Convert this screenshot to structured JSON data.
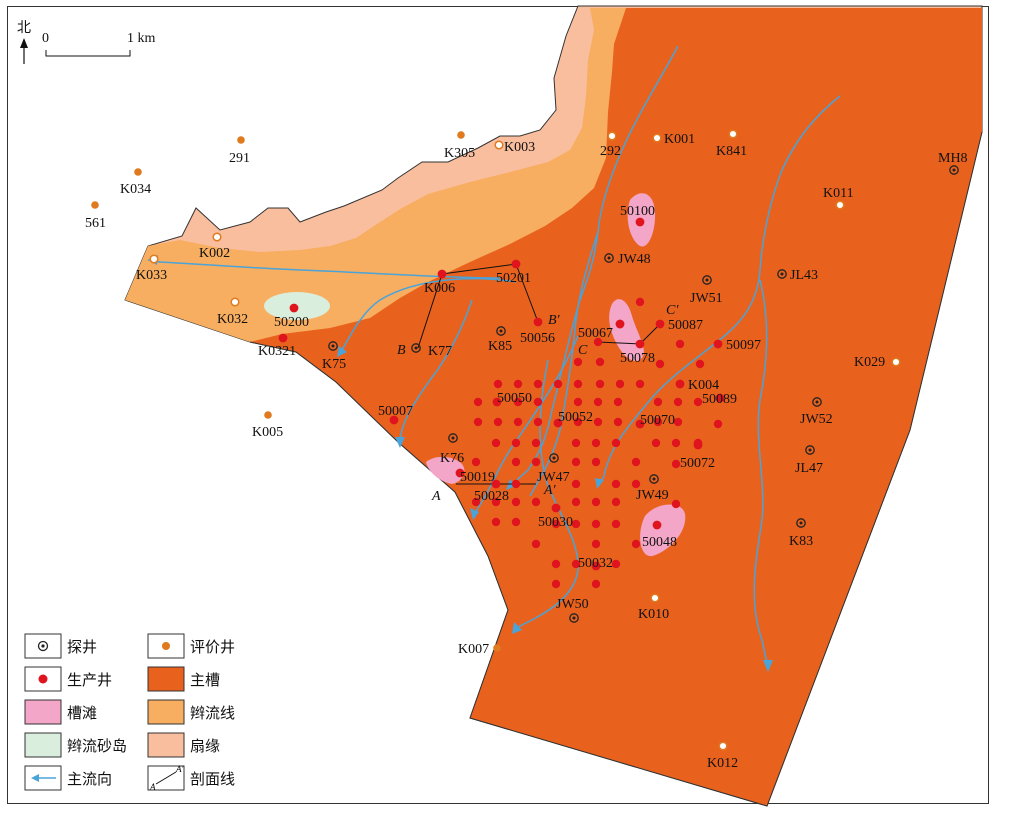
{
  "north_label": "北",
  "scale": {
    "zero": "0",
    "end": "1 km"
  },
  "colors": {
    "main_channel": "#E8621E",
    "distributary": "#F8AE60",
    "fan_margin": "#F9BE9E",
    "channel_bar": "#F3A6C7",
    "sand_island": "#D9EEDC",
    "flow": "#4AA3D9",
    "production_well": "#E0141E",
    "appraisal_well": "#E07A1E"
  },
  "legend": [
    {
      "symbol": "exploration-well",
      "label": "探井"
    },
    {
      "symbol": "appraisal-well",
      "label": "评价井"
    },
    {
      "symbol": "production-well",
      "label": "生产井"
    },
    {
      "symbol": "main-channel",
      "label": "主槽"
    },
    {
      "symbol": "channel-bar",
      "label": "槽滩"
    },
    {
      "symbol": "distributary-line",
      "label": "辫流线"
    },
    {
      "symbol": "sand-island",
      "label": "辫流砂岛"
    },
    {
      "symbol": "fan-margin",
      "label": "扇缘"
    },
    {
      "symbol": "main-flow-direction",
      "label": "主流向"
    },
    {
      "symbol": "section-line",
      "label": "剖面线"
    }
  ],
  "section_letters": {
    "A": "A",
    "A2": "A′",
    "B": "B",
    "B2": "B′",
    "C": "C",
    "C2": "C′"
  },
  "exploration_wells": [
    "MH8",
    "JW48",
    "JW51",
    "JL43",
    "K85",
    "K77",
    "K75",
    "K76",
    "JW47",
    "JW49",
    "JW52",
    "JL47",
    "K83",
    "JW50"
  ],
  "appraisal_wells": [
    "291",
    "K034",
    "561",
    "K305",
    "K003",
    "K002",
    "K033",
    "K032",
    "K005",
    "K007",
    "292",
    "K001",
    "K841",
    "K011",
    "K029",
    "K010",
    "K012"
  ],
  "production_wells_labeled": [
    "50100",
    "K006",
    "50201",
    "50200",
    "K0321",
    "50056",
    "50067",
    "50087",
    "50078",
    "50097",
    "K004",
    "50089",
    "50050",
    "50052",
    "50070",
    "50007",
    "50072",
    "50019",
    "50028",
    "50030",
    "50048",
    "50032"
  ],
  "well_labels": {
    "MH8": "MH8",
    "JW48": "JW48",
    "JW51": "JW51",
    "JL43": "JL43",
    "K85": "K85",
    "K77": "K77",
    "K75": "K75",
    "K76": "K76",
    "JW47": "JW47",
    "JW49": "JW49",
    "JW52": "JW52",
    "JL47": "JL47",
    "K83": "K83",
    "JW50": "JW50",
    "291": "291",
    "K034": "K034",
    "561": "561",
    "K305": "K305",
    "K003": "K003",
    "K002": "K002",
    "K033": "K033",
    "K032": "K032",
    "K005": "K005",
    "K007": "K007",
    "292": "292",
    "K001": "K001",
    "K841": "K841",
    "K011": "K011",
    "K029": "K029",
    "K010": "K010",
    "K012": "K012",
    "50100": "50100",
    "K006": "K006",
    "50201": "50201",
    "50200": "50200",
    "K0321": "K0321",
    "50056": "50056",
    "50067": "50067",
    "50087": "50087",
    "50078": "50078",
    "50097": "50097",
    "K004": "K004",
    "50089": "50089",
    "50050": "50050",
    "50052": "50052",
    "50070": "50070",
    "50007": "50007",
    "50072": "50072",
    "50019": "50019",
    "50028": "50028",
    "50030": "50030",
    "50048": "50048",
    "50032": "50032"
  }
}
